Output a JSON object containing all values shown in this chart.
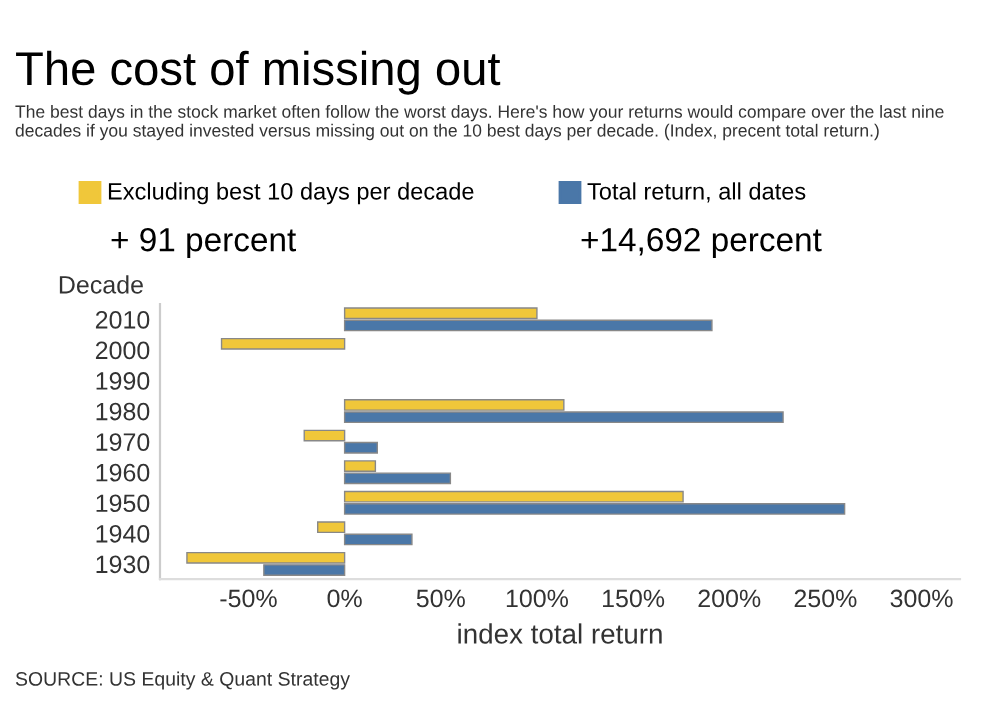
{
  "chart_data": {
    "type": "bar",
    "orientation": "horizontal",
    "title": "The cost of missing out",
    "subtitle": "The best days in the stock market often follow the worst days. Here's how your returns would compare over the last nine decades if you stayed invested versus missing out on the 10 best days per decade. (Index, precent total return.)",
    "ylabel": "Decade",
    "xlabel": "index total return",
    "categories": [
      "2010",
      "2000",
      "1990",
      "1980",
      "1970",
      "1960",
      "1950",
      "1940",
      "1930"
    ],
    "series": [
      {
        "name": "Excluding best 10 days per decade",
        "color": "#f0c73a",
        "values": [
          100,
          -64,
          null,
          114,
          -21,
          16,
          176,
          -14,
          -82
        ]
      },
      {
        "name": "Total return, all dates",
        "color": "#4a77a8",
        "values": [
          191,
          null,
          null,
          228,
          17,
          55,
          260,
          35,
          -42
        ]
      }
    ],
    "xlim": [
      -96,
      320
    ],
    "xticks": [
      {
        "value": -50,
        "label": "-50%"
      },
      {
        "value": 0,
        "label": "0%"
      },
      {
        "value": 50,
        "label": "50%"
      },
      {
        "value": 100,
        "label": "100%"
      },
      {
        "value": 150,
        "label": "150%"
      },
      {
        "value": 200,
        "label": "200%"
      },
      {
        "value": 250,
        "label": "250%"
      },
      {
        "value": 300,
        "label": "300%"
      }
    ],
    "legend": "top",
    "grid": false,
    "annotations": [
      "+ 91 percent",
      "+14,692 percent",
      "SOURCE: US Equity & Quant Strategy"
    ]
  }
}
